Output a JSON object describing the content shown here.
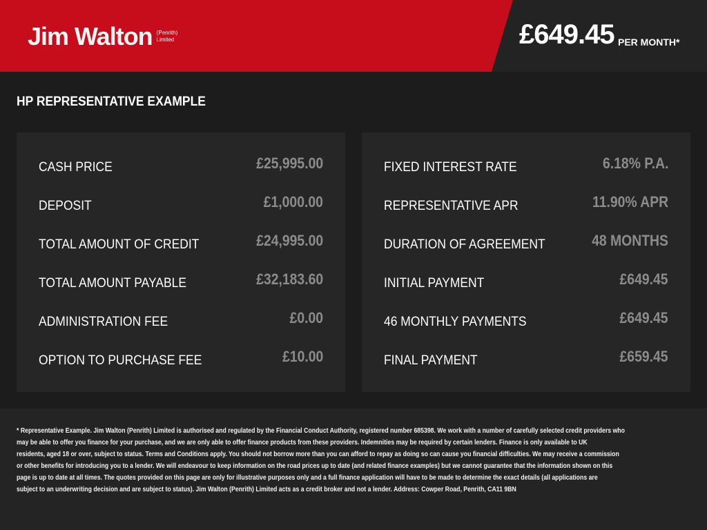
{
  "header": {
    "logo_name": "Jim Walton",
    "logo_sub_1": "(Penrith)",
    "logo_sub_2": "Limited",
    "monthly_price": "£649.45",
    "per_month_label": "PER MONTH*",
    "brand_color": "#c70d1b"
  },
  "section_title": "HP REPRESENTATIVE EXAMPLE",
  "left_panel": [
    {
      "label": "CASH PRICE",
      "value": "£25,995.00"
    },
    {
      "label": "DEPOSIT",
      "value": "£1,000.00"
    },
    {
      "label": "TOTAL AMOUNT OF CREDIT",
      "value": "£24,995.00"
    },
    {
      "label": "TOTAL AMOUNT PAYABLE",
      "value": "£32,183.60"
    },
    {
      "label": "ADMINISTRATION FEE",
      "value": "£0.00"
    },
    {
      "label": "OPTION TO PURCHASE FEE",
      "value": "£10.00"
    }
  ],
  "right_panel": [
    {
      "label": "FIXED INTEREST RATE",
      "value": "6.18% P.A."
    },
    {
      "label": "REPRESENTATIVE APR",
      "value": "11.90% APR"
    },
    {
      "label": "DURATION OF AGREEMENT",
      "value": "48 MONTHS"
    },
    {
      "label": "INITIAL PAYMENT",
      "value": "£649.45"
    },
    {
      "label": "46 MONTHLY PAYMENTS",
      "value": "£649.45"
    },
    {
      "label": "FINAL PAYMENT",
      "value": "£659.45"
    }
  ],
  "disclaimer_lines": [
    "* Representative Example. Jim Walton (Penrith) Limited is authorised and regulated by the Financial Conduct Authority, registered number 685398. We work with a number of carefully selected credit providers who",
    "may be able to offer you finance for your purchase, and we are only able to offer finance products from these providers. Indemnities may be required by certain lenders. Finance is only available to UK",
    "residents, aged 18 or over, subject to status. Terms and Conditions apply. You should not borrow more than you can afford to repay as doing so can cause you financial difficulties. We may receive a commission",
    "or other benefits for introducing you to a lender. We will endeavour to keep information on the road prices up to date (and related finance examples) but we cannot guarantee that the information shown on this",
    "page is up to date at all times. The quotes provided on this page are only for illustrative purposes only and a full finance application will have to be made to determine the exact details (all applications are",
    "subject to an underwriting decision and are subject to status). Jim Walton (Penrith) Limited acts as a credit broker and not a lender. Address: Cowper Road, Penrith, CA11 9BN"
  ]
}
